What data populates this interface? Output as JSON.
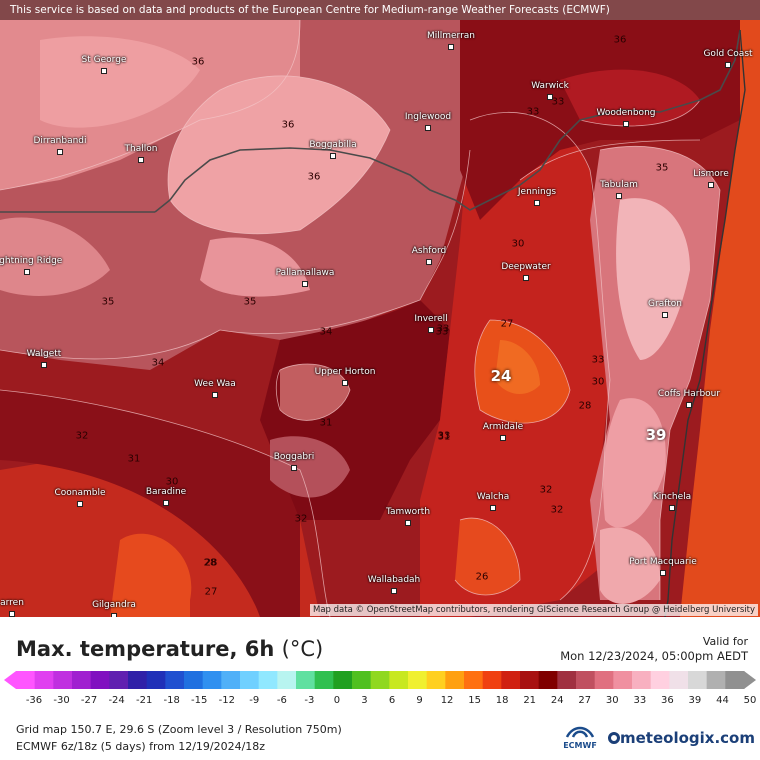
{
  "header": {
    "notice": "This service is based on data and products of the European Centre for Medium-range Weather Forecasts (ECMWF)"
  },
  "map": {
    "attribution": "Map data © OpenStreetMap contributors, rendering GIScience Research Group @ Heidelberg University",
    "towns": [
      {
        "name": "Millmerran"
      },
      {
        "name": "Gold Coast"
      },
      {
        "name": "St George"
      },
      {
        "name": "Warwick"
      },
      {
        "name": "Woodenbong"
      },
      {
        "name": "Inglewood"
      },
      {
        "name": "Dirranbandi"
      },
      {
        "name": "Thallon"
      },
      {
        "name": "Boggabilla"
      },
      {
        "name": "Tabulam"
      },
      {
        "name": "Lismore"
      },
      {
        "name": "Jennings"
      },
      {
        "name": "Ashford"
      },
      {
        "name": "Lightning Ridge"
      },
      {
        "name": "Deepwater"
      },
      {
        "name": "Pallamallawa"
      },
      {
        "name": "Grafton"
      },
      {
        "name": "Inverell"
      },
      {
        "name": "Walgett"
      },
      {
        "name": "Upper Horton"
      },
      {
        "name": "Wee Waa"
      },
      {
        "name": "Coffs Harbour"
      },
      {
        "name": "Armidale"
      },
      {
        "name": "Boggabri"
      },
      {
        "name": "Coonamble"
      },
      {
        "name": "Baradine"
      },
      {
        "name": "Walcha"
      },
      {
        "name": "Kinchela"
      },
      {
        "name": "Tamworth"
      },
      {
        "name": "Port Macquarie"
      },
      {
        "name": "Wallabadah"
      },
      {
        "name": "arren"
      },
      {
        "name": "Gilgandra"
      }
    ],
    "contour_labels": [
      "36",
      "36",
      "33",
      "33",
      "36",
      "36",
      "35",
      "35",
      "35",
      "33",
      "30",
      "33",
      "27",
      "34",
      "34",
      "32",
      "33",
      "24",
      "30",
      "31",
      "28",
      "31",
      "32",
      "31",
      "32",
      "30",
      "32",
      "33",
      "28",
      "26",
      "27",
      "39",
      "28"
    ]
  },
  "legend": {
    "title": "Max. temperature, 6h",
    "unit": "(°C)",
    "valid_label": "Valid for",
    "valid_time": "Mon 12/23/2024, 05:00pm AEDT",
    "ticks": [
      "-36",
      "-30",
      "-27",
      "-24",
      "-21",
      "-18",
      "-15",
      "-12",
      "-9",
      "-6",
      "-3",
      "0",
      "3",
      "6",
      "9",
      "12",
      "15",
      "18",
      "21",
      "24",
      "27",
      "30",
      "33",
      "36",
      "39",
      "44",
      "50"
    ],
    "colors": [
      "#ff55ff",
      "#e040f0",
      "#c030e0",
      "#a020d0",
      "#8010c0",
      "#6020b0",
      "#3020a8",
      "#2030b8",
      "#2050d0",
      "#2070e0",
      "#3090f0",
      "#50b0f8",
      "#70d0ff",
      "#90e8ff",
      "#b8f4f0",
      "#60e0a0",
      "#30c050",
      "#20a020",
      "#50c020",
      "#90d820",
      "#c8e820",
      "#f0f030",
      "#ffd020",
      "#ffa010",
      "#ff7010",
      "#f04010",
      "#d02010",
      "#a81010",
      "#800000",
      "#a03040",
      "#c05060",
      "#e07080",
      "#f090a0",
      "#f8b0c0",
      "#ffd0e0",
      "#f0e0e8",
      "#d8d8d8",
      "#b0b0b0",
      "#909090"
    ],
    "grid_info": "Grid map 150.7 E, 29.6 S (Zoom level 3 / Resolution 750m)",
    "model_info": "ECMWF 6z/18z (5 days) from 12/19/2024/18z",
    "ecmwf_logo": "ECMWF",
    "brand": "meteologix.com"
  }
}
